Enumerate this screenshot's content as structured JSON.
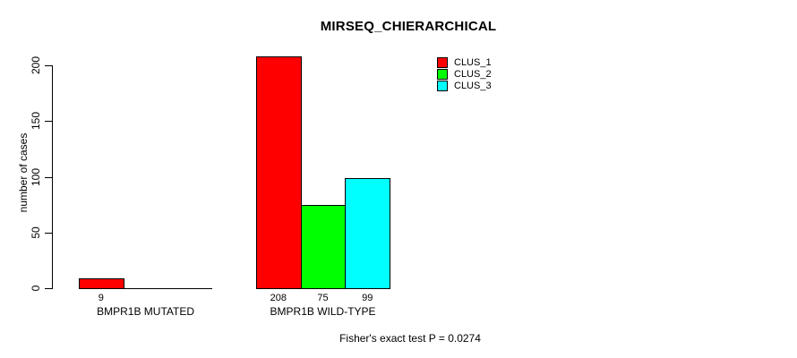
{
  "chart_data": {
    "type": "bar",
    "title": "MIRSEQ_CHIERARCHICAL",
    "xlabel": "",
    "ylabel": "number of cases",
    "ylim": [
      0,
      208
    ],
    "yticks": [
      0,
      50,
      100,
      150,
      200
    ],
    "grid": false,
    "legend_position": "top-right",
    "categories": [
      "BMPR1B MUTATED",
      "BMPR1B WILD-TYPE"
    ],
    "series": [
      {
        "name": "CLUS_1",
        "color": "#FF0000",
        "values": [
          9,
          208
        ]
      },
      {
        "name": "CLUS_2",
        "color": "#00FF00",
        "values": [
          0,
          75
        ]
      },
      {
        "name": "CLUS_3",
        "color": "#00FFFF",
        "values": [
          0,
          99
        ]
      }
    ],
    "bar_value_labels": [
      [
        "9",
        null,
        null
      ],
      [
        "208",
        "75",
        "99"
      ]
    ],
    "annotation": "Fisher's exact test P = 0.0274"
  },
  "legend": {
    "entries": [
      {
        "label": "CLUS_1",
        "color": "#FF0000"
      },
      {
        "label": "CLUS_2",
        "color": "#00FF00"
      },
      {
        "label": "CLUS_3",
        "color": "#00FFFF"
      }
    ]
  }
}
